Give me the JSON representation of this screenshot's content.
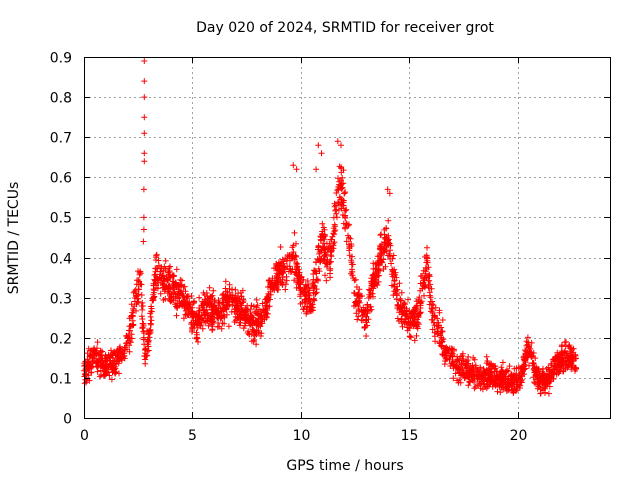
{
  "chart_data": {
    "type": "scatter",
    "title": "Day 020 of 2024, SRMTID for receiver grot",
    "xlabel": "GPS time / hours",
    "ylabel": "SRMTID / TECUs",
    "xlim": [
      0,
      24.25
    ],
    "ylim": [
      0,
      0.9
    ],
    "xticks": [
      0,
      5,
      10,
      15,
      20
    ],
    "yticks": [
      0,
      0.1,
      0.2,
      0.3,
      0.4,
      0.5,
      0.6,
      0.7,
      0.8,
      0.9
    ],
    "xtick_labels": [
      "0",
      "5",
      "10",
      "15",
      "20"
    ],
    "ytick_labels": [
      "0",
      "0.1",
      "0.2",
      "0.3",
      "0.4",
      "0.5",
      "0.6",
      "0.7",
      "0.8",
      "0.9"
    ],
    "grid": true,
    "marker": "+",
    "color": "#ff0000",
    "series": [
      {
        "name": "SRMTID",
        "trend": [
          [
            0.0,
            0.12
          ],
          [
            0.5,
            0.15
          ],
          [
            1.0,
            0.13
          ],
          [
            1.5,
            0.14
          ],
          [
            2.0,
            0.18
          ],
          [
            2.4,
            0.3
          ],
          [
            2.6,
            0.36
          ],
          [
            2.8,
            0.15
          ],
          [
            3.0,
            0.2
          ],
          [
            3.3,
            0.36
          ],
          [
            3.8,
            0.33
          ],
          [
            4.2,
            0.32
          ],
          [
            4.7,
            0.28
          ],
          [
            5.2,
            0.24
          ],
          [
            5.7,
            0.28
          ],
          [
            6.2,
            0.26
          ],
          [
            6.8,
            0.29
          ],
          [
            7.3,
            0.27
          ],
          [
            7.8,
            0.23
          ],
          [
            8.3,
            0.26
          ],
          [
            8.8,
            0.36
          ],
          [
            9.3,
            0.37
          ],
          [
            9.7,
            0.4
          ],
          [
            10.0,
            0.32
          ],
          [
            10.5,
            0.28
          ],
          [
            11.0,
            0.45
          ],
          [
            11.3,
            0.36
          ],
          [
            11.8,
            0.6
          ],
          [
            12.1,
            0.5
          ],
          [
            12.5,
            0.3
          ],
          [
            13.0,
            0.25
          ],
          [
            13.5,
            0.38
          ],
          [
            14.0,
            0.45
          ],
          [
            14.5,
            0.28
          ],
          [
            15.0,
            0.24
          ],
          [
            15.4,
            0.25
          ],
          [
            15.8,
            0.38
          ],
          [
            16.1,
            0.25
          ],
          [
            16.7,
            0.17
          ],
          [
            17.2,
            0.13
          ],
          [
            17.7,
            0.12
          ],
          [
            18.2,
            0.1
          ],
          [
            18.7,
            0.11
          ],
          [
            19.2,
            0.1
          ],
          [
            19.7,
            0.09
          ],
          [
            20.1,
            0.1
          ],
          [
            20.5,
            0.18
          ],
          [
            20.9,
            0.1
          ],
          [
            21.3,
            0.09
          ],
          [
            21.8,
            0.14
          ],
          [
            22.3,
            0.15
          ],
          [
            22.7,
            0.14
          ]
        ],
        "spikes": [
          [
            2.78,
            0.89
          ],
          [
            2.78,
            0.84
          ],
          [
            2.78,
            0.8
          ],
          [
            2.78,
            0.75
          ],
          [
            2.78,
            0.71
          ],
          [
            2.78,
            0.66
          ],
          [
            2.78,
            0.64
          ],
          [
            2.76,
            0.57
          ],
          [
            2.76,
            0.5
          ],
          [
            2.76,
            0.47
          ],
          [
            2.74,
            0.44
          ],
          [
            10.8,
            0.68
          ],
          [
            10.95,
            0.66
          ],
          [
            11.7,
            0.69
          ],
          [
            11.85,
            0.68
          ],
          [
            9.65,
            0.63
          ],
          [
            9.8,
            0.62
          ],
          [
            14.0,
            0.57
          ],
          [
            14.1,
            0.56
          ],
          [
            10.7,
            0.62
          ]
        ],
        "noise": 0.045,
        "n_points": 2600
      }
    ]
  }
}
